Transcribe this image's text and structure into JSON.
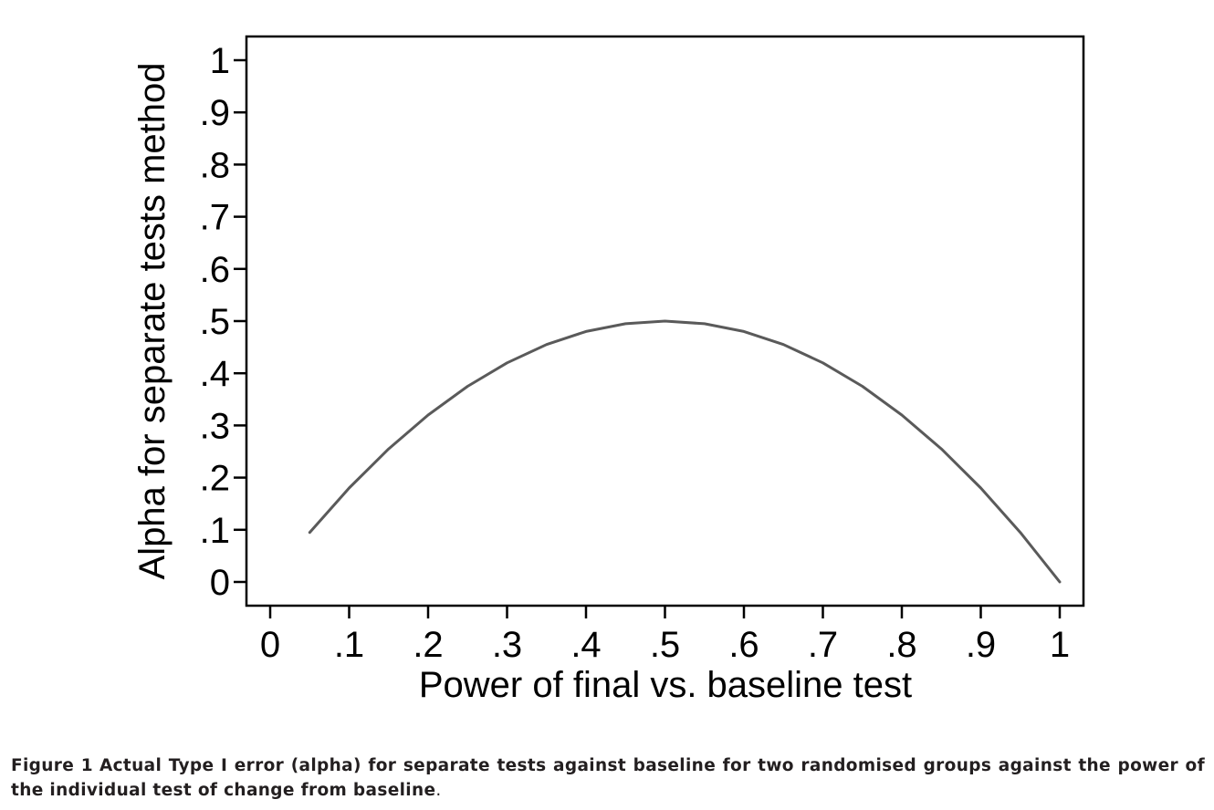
{
  "chart_data": {
    "type": "line",
    "xlabel": "Power of final vs. baseline test",
    "ylabel": "Alpha for separate tests method",
    "xlim": [
      0,
      1
    ],
    "ylim": [
      0,
      1
    ],
    "x_ticks": [
      "0",
      ".1",
      ".2",
      ".3",
      ".4",
      ".5",
      ".6",
      ".7",
      ".8",
      ".9",
      "1"
    ],
    "y_ticks": [
      "0",
      ".1",
      ".2",
      ".3",
      ".4",
      ".5",
      ".6",
      ".7",
      ".8",
      ".9",
      "1"
    ],
    "grid": false,
    "line_color": "#5a5a5a",
    "series": [
      {
        "x": [
          0.05,
          0.1,
          0.15,
          0.2,
          0.25,
          0.3,
          0.35,
          0.4,
          0.45,
          0.5,
          0.55,
          0.6,
          0.65,
          0.7,
          0.75,
          0.8,
          0.85,
          0.9,
          0.95,
          1.0
        ],
        "y": [
          0.095,
          0.18,
          0.255,
          0.32,
          0.375,
          0.42,
          0.455,
          0.48,
          0.495,
          0.5,
          0.495,
          0.48,
          0.455,
          0.42,
          0.375,
          0.32,
          0.255,
          0.18,
          0.095,
          0.0
        ]
      }
    ]
  },
  "caption": {
    "label": "Figure 1",
    "text": "Actual Type I error (alpha) for separate tests against baseline for two randomised groups against the power of the individual test of change from baseline",
    "end": "."
  }
}
